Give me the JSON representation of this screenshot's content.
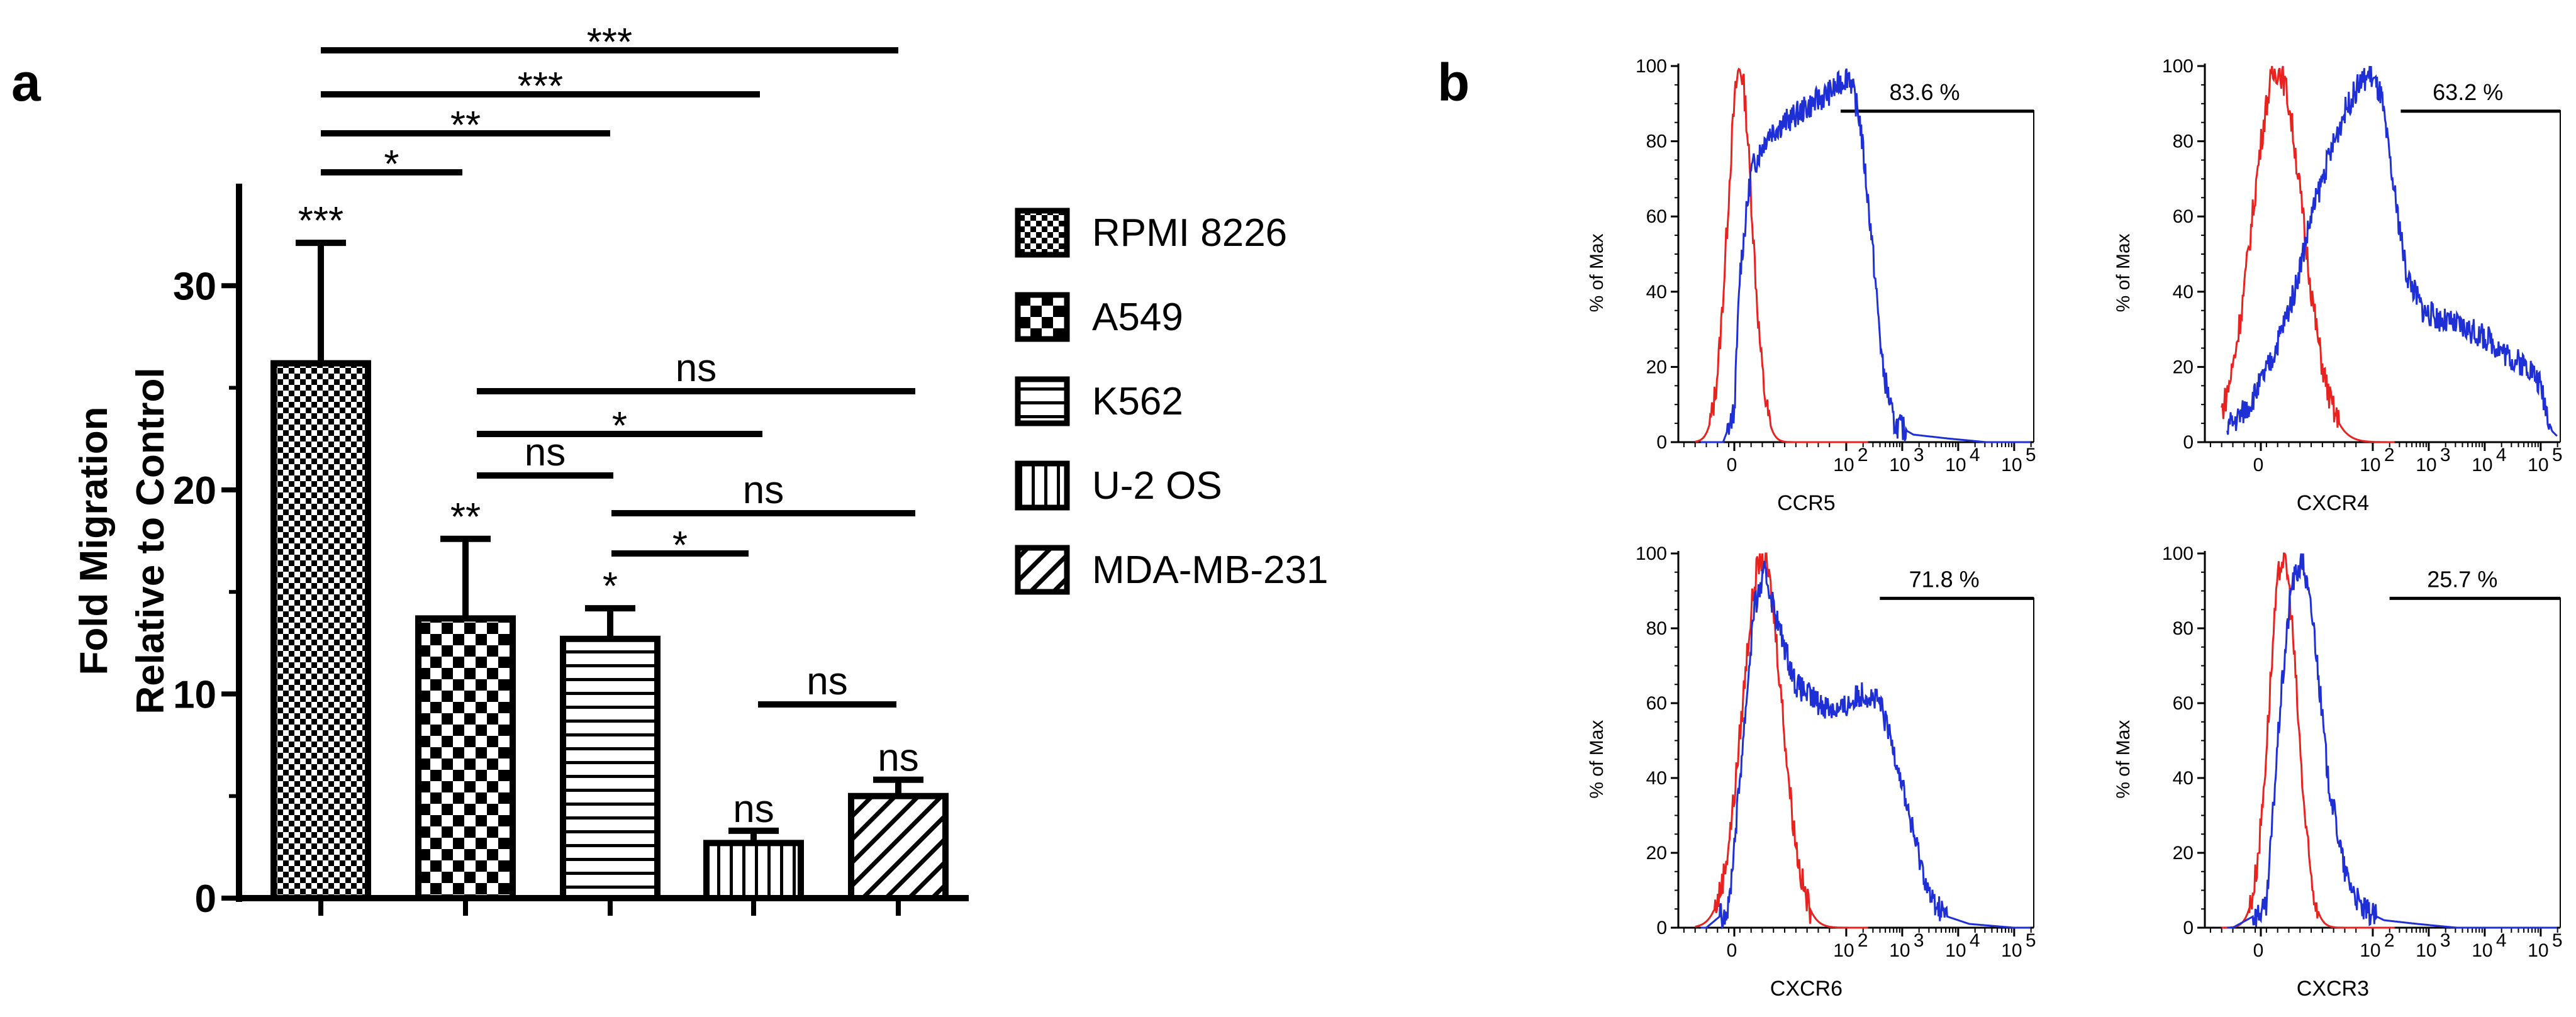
{
  "panels": {
    "a": "a",
    "b": "b"
  },
  "chart_data": [
    {
      "type": "bar",
      "panel": "a",
      "ylabel_lines": [
        "Fold Migration",
        "Relative to Control"
      ],
      "xlabel": "",
      "ylim": [
        0,
        35
      ],
      "yticks": [
        "0",
        "10",
        "20",
        "30"
      ],
      "categories": [
        "RPMI 8226",
        "A549",
        "K562",
        "U-2 OS",
        "MDA-MB-231"
      ],
      "values": [
        26.2,
        13.7,
        12.7,
        2.7,
        5.0
      ],
      "errors": [
        5.9,
        3.9,
        1.5,
        0.6,
        0.8
      ],
      "bar_labels": [
        "***",
        "**",
        "*",
        "ns",
        "ns"
      ],
      "legend": {
        "placement": "right",
        "entries": [
          "RPMI 8226",
          "A549",
          "K562",
          "U-2 OS",
          "MDA-MB-231"
        ]
      },
      "comparisons": [
        {
          "from": 0,
          "to": 4,
          "label": "***"
        },
        {
          "from": 0,
          "to": 3,
          "label": "***"
        },
        {
          "from": 0,
          "to": 2,
          "label": "**"
        },
        {
          "from": 0,
          "to": 1,
          "label": "*"
        },
        {
          "from": 1,
          "to": 4,
          "label": "ns"
        },
        {
          "from": 1,
          "to": 3,
          "label": "*"
        },
        {
          "from": 1,
          "to": 2,
          "label": "ns"
        },
        {
          "from": 2,
          "to": 4,
          "label": "ns"
        },
        {
          "from": 2,
          "to": 3,
          "label": "*"
        },
        {
          "from": 3,
          "to": 4,
          "label": "ns"
        }
      ]
    },
    {
      "type": "histogram",
      "panel": "b",
      "ylabel": "% of Max",
      "yticks": [
        "0",
        "20",
        "40",
        "60",
        "80",
        "100"
      ],
      "xticks": [
        "0",
        "10",
        "10",
        "10",
        "10"
      ],
      "xtick_exponents": [
        "",
        "2",
        "3",
        "4",
        "5"
      ],
      "plots": [
        {
          "xlabel": "CCR5",
          "percent": "83.6 %",
          "gate_start_decade": 1.9,
          "red_peak_decade": 0.1,
          "red_width": 0.22,
          "blue_peak_decade": 2.1,
          "blue_profile": [
            [
              -0.5,
              0
            ],
            [
              -0.2,
              0
            ],
            [
              0,
              8
            ],
            [
              0.1,
              45
            ],
            [
              0.3,
              72
            ],
            [
              0.6,
              82
            ],
            [
              1.0,
              86
            ],
            [
              1.4,
              90
            ],
            [
              1.8,
              94
            ],
            [
              2.05,
              98
            ],
            [
              2.25,
              85
            ],
            [
              2.45,
              55
            ],
            [
              2.65,
              20
            ],
            [
              2.85,
              5
            ],
            [
              3.2,
              2
            ],
            [
              3.8,
              1
            ],
            [
              4.5,
              0
            ]
          ]
        },
        {
          "xlabel": "CXCR4",
          "percent": "63.2 %",
          "gate_start_decade": 2.5,
          "red_peak_decade": 0.3,
          "red_width": 0.45,
          "blue_peak_decade": 2.2,
          "blue_profile": [
            [
              -0.5,
              5
            ],
            [
              -0.2,
              10
            ],
            [
              0.2,
              22
            ],
            [
              0.6,
              40
            ],
            [
              0.9,
              60
            ],
            [
              1.2,
              75
            ],
            [
              1.5,
              88
            ],
            [
              1.75,
              95
            ],
            [
              1.95,
              98
            ],
            [
              2.15,
              92
            ],
            [
              2.35,
              70
            ],
            [
              2.6,
              45
            ],
            [
              2.9,
              35
            ],
            [
              3.3,
              32
            ],
            [
              3.7,
              30
            ],
            [
              4.1,
              27
            ],
            [
              4.5,
              22
            ],
            [
              4.8,
              20
            ],
            [
              5.0,
              15
            ],
            [
              5.2,
              3
            ],
            [
              5.4,
              0
            ]
          ]
        },
        {
          "xlabel": "CXCR6",
          "percent": "71.8 %",
          "gate_start_decade": 2.6,
          "red_peak_decade": 0.5,
          "red_width": 0.35,
          "blue_peak_decade": 0.6,
          "blue_profile": [
            [
              -0.5,
              0
            ],
            [
              -0.1,
              5
            ],
            [
              0.1,
              40
            ],
            [
              0.35,
              85
            ],
            [
              0.55,
              95
            ],
            [
              0.8,
              80
            ],
            [
              1.1,
              65
            ],
            [
              1.5,
              60
            ],
            [
              1.9,
              58
            ],
            [
              2.3,
              63
            ],
            [
              2.6,
              60
            ],
            [
              2.9,
              45
            ],
            [
              3.2,
              25
            ],
            [
              3.5,
              8
            ],
            [
              3.8,
              3
            ],
            [
              4.2,
              1
            ],
            [
              5.0,
              0
            ]
          ]
        },
        {
          "xlabel": "CXCR3",
          "percent": "25.7 %",
          "gate_start_decade": 2.3,
          "red_peak_decade": 0.4,
          "red_width": 0.25,
          "blue_peak_decade": 0.75,
          "blue_profile": [
            [
              -0.5,
              0
            ],
            [
              0.1,
              5
            ],
            [
              0.35,
              60
            ],
            [
              0.55,
              92
            ],
            [
              0.75,
              98
            ],
            [
              0.95,
              80
            ],
            [
              1.2,
              40
            ],
            [
              1.5,
              15
            ],
            [
              1.8,
              5
            ],
            [
              2.2,
              2
            ],
            [
              2.8,
              1
            ],
            [
              3.5,
              0
            ],
            [
              5.0,
              0
            ]
          ]
        }
      ]
    }
  ],
  "colors": {
    "isotype": "#e8231f",
    "stain": "#1f2fd6",
    "axis": "#000000"
  }
}
